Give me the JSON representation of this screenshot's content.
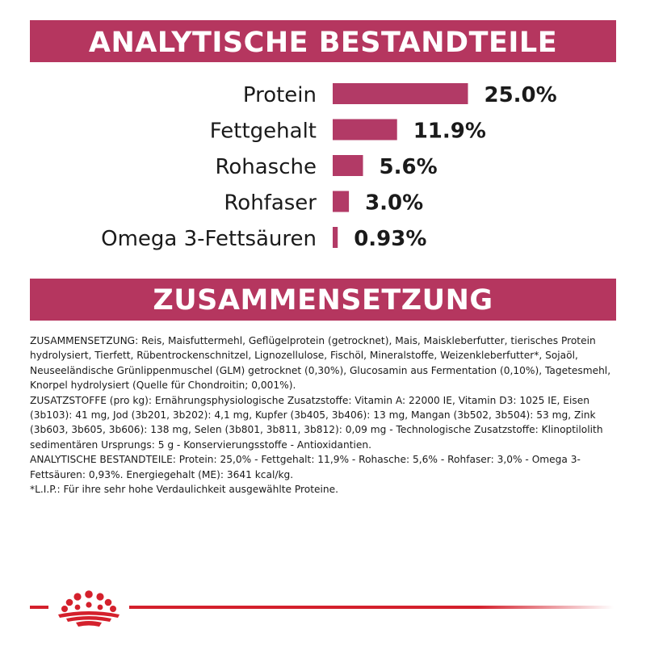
{
  "header_analytic": "ANALYTISCHE BESTANDTEILE",
  "header_composition": "ZUSAMMENSETZUNG",
  "colors": {
    "brand": "#b5365f",
    "bar": "#b23a66",
    "footer_red": "#d4202c",
    "text": "#1a1a1a"
  },
  "chart_data": {
    "type": "bar",
    "orientation": "horizontal",
    "categories": [
      "Protein",
      "Fettgehalt",
      "Rohasche",
      "Rohfaser",
      "Omega 3-Fettsäuren"
    ],
    "values": [
      25.0,
      11.9,
      5.6,
      3.0,
      0.93
    ],
    "value_labels": [
      "25.0%",
      "11.9%",
      "5.6%",
      "3.0%",
      "0.93%"
    ],
    "unit": "%"
  },
  "composition_paragraphs": [
    "ZUSAMMENSETZUNG: Reis, Maisfuttermehl, Geflügelprotein (getrocknet), Mais, Maiskleberfutter, tierisches Protein hydrolysiert, Tierfett, Rübentrockenschnitzel, Lignozellulose, Fischöl, Mineralstoffe, Weizenkleberfutter*, Sojaöl, Neuseeländische Grünlippenmuschel (GLM) getrocknet (0,30%), Glucosamin aus Fermentation (0,10%), Tagetesmehl, Knorpel hydrolysiert (Quelle für Chondroitin; 0,001%).",
    "ZUSATZSTOFFE (pro kg): Ernährungsphysiologische Zusatzstoffe: Vitamin A: 22000 IE, Vitamin D3: 1025 IE, Eisen (3b103): 41 mg, Jod (3b201, 3b202): 4,1 mg, Kupfer (3b405, 3b406): 13 mg, Mangan (3b502, 3b504): 53 mg, Zink (3b603, 3b605, 3b606): 138 mg, Selen (3b801, 3b811, 3b812): 0,09 mg - Technologische Zusatzstoffe: Klinoptilolith sedimentären Ursprungs: 5 g - Konservierungsstoffe - Antioxidantien.",
    "ANALYTISCHE BESTANDTEILE: Protein: 25,0% - Fettgehalt: 11,9% - Rohasche: 5,6% - Rohfaser: 3,0% - Omega 3-Fettsäuren: 0,93%. Energiegehalt (ME): 3641 kcal/kg.",
    "*L.I.P.: Für ihre sehr hohe Verdaulichkeit ausgewählte Proteine."
  ]
}
